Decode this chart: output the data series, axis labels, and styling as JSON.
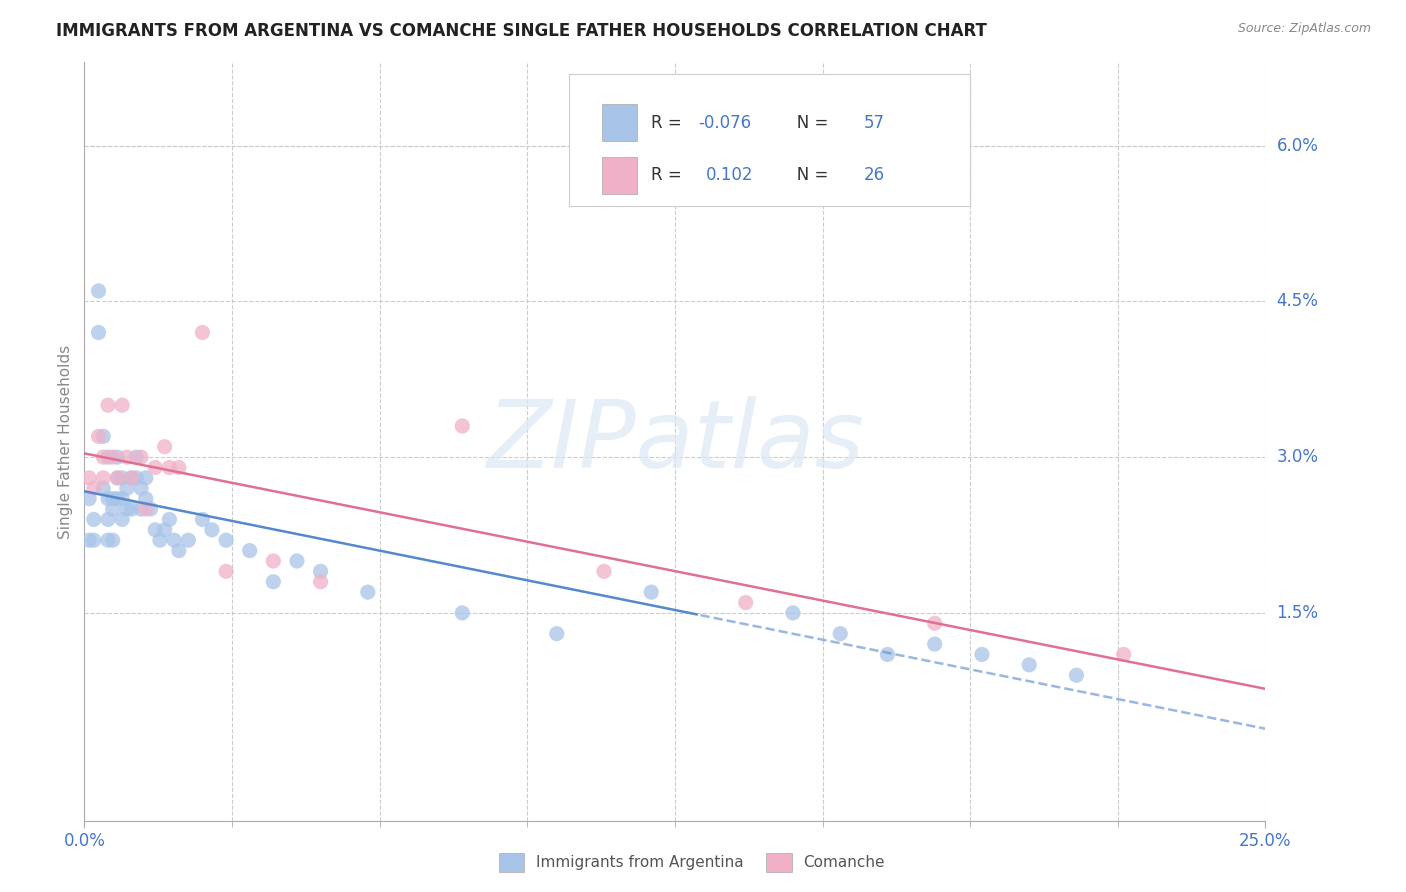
{
  "title": "IMMIGRANTS FROM ARGENTINA VS COMANCHE SINGLE FATHER HOUSEHOLDS CORRELATION CHART",
  "source": "Source: ZipAtlas.com",
  "ylabel": "Single Father Households",
  "right_ytick_vals": [
    0.015,
    0.03,
    0.045,
    0.06
  ],
  "right_ytick_labels": [
    "1.5%",
    "3.0%",
    "4.5%",
    "6.0%"
  ],
  "xmin": 0.0,
  "xmax": 0.25,
  "ymin": -0.005,
  "ymax": 0.068,
  "legend_r1_prefix": "R = ",
  "legend_r1_val": "-0.076",
  "legend_n1": "N = 57",
  "legend_r2_prefix": "R =  ",
  "legend_r2_val": "0.102",
  "legend_n2": "N = 26",
  "color_blue_scatter": "#a8c4e8",
  "color_pink_scatter": "#f0b0c8",
  "color_blue_line": "#5588cc",
  "color_pink_line": "#e07090",
  "color_blue_text": "#4477cc",
  "color_axis_text": "#4477cc",
  "color_label": "#888888",
  "color_grid": "#cccccc",
  "watermark_text": "ZIPatlas",
  "watermark_color": "#e0eaf5",
  "blue_x": [
    0.001,
    0.001,
    0.002,
    0.002,
    0.003,
    0.003,
    0.004,
    0.004,
    0.005,
    0.005,
    0.005,
    0.005,
    0.006,
    0.006,
    0.006,
    0.007,
    0.007,
    0.007,
    0.008,
    0.008,
    0.008,
    0.009,
    0.009,
    0.01,
    0.01,
    0.011,
    0.011,
    0.012,
    0.012,
    0.013,
    0.013,
    0.014,
    0.015,
    0.016,
    0.017,
    0.018,
    0.019,
    0.02,
    0.022,
    0.025,
    0.027,
    0.03,
    0.035,
    0.04,
    0.045,
    0.05,
    0.06,
    0.08,
    0.1,
    0.12,
    0.15,
    0.16,
    0.17,
    0.18,
    0.19,
    0.2,
    0.21
  ],
  "blue_y": [
    0.026,
    0.022,
    0.022,
    0.024,
    0.046,
    0.042,
    0.032,
    0.027,
    0.03,
    0.026,
    0.024,
    0.022,
    0.026,
    0.025,
    0.022,
    0.03,
    0.028,
    0.026,
    0.028,
    0.026,
    0.024,
    0.027,
    0.025,
    0.028,
    0.025,
    0.03,
    0.028,
    0.027,
    0.025,
    0.028,
    0.026,
    0.025,
    0.023,
    0.022,
    0.023,
    0.024,
    0.022,
    0.021,
    0.022,
    0.024,
    0.023,
    0.022,
    0.021,
    0.018,
    0.02,
    0.019,
    0.017,
    0.015,
    0.013,
    0.017,
    0.015,
    0.013,
    0.011,
    0.012,
    0.011,
    0.01,
    0.009
  ],
  "pink_x": [
    0.001,
    0.002,
    0.003,
    0.004,
    0.004,
    0.005,
    0.006,
    0.007,
    0.008,
    0.009,
    0.01,
    0.012,
    0.013,
    0.015,
    0.017,
    0.018,
    0.02,
    0.025,
    0.03,
    0.04,
    0.05,
    0.08,
    0.11,
    0.14,
    0.18,
    0.22
  ],
  "pink_y": [
    0.028,
    0.027,
    0.032,
    0.03,
    0.028,
    0.035,
    0.03,
    0.028,
    0.035,
    0.03,
    0.028,
    0.03,
    0.025,
    0.029,
    0.031,
    0.029,
    0.029,
    0.042,
    0.019,
    0.02,
    0.018,
    0.033,
    0.019,
    0.016,
    0.014,
    0.011
  ]
}
